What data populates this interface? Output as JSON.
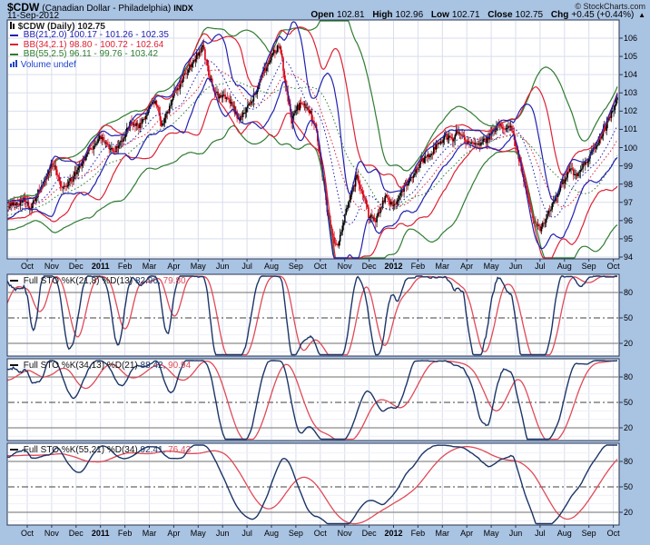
{
  "header": {
    "symbol": "$CDW",
    "name": "(Canadian Dollar - Philadelphia)",
    "exchange": "INDX",
    "date": "11-Sep-2012",
    "copyright": "© StockCharts.com",
    "quote": {
      "open_label": "Open",
      "open_value": "102.81",
      "high_label": "High",
      "high_value": "102.96",
      "low_label": "Low",
      "low_value": "102.71",
      "close_label": "Close",
      "close_value": "102.75",
      "chg_label": "Chg",
      "chg_value": "+0.45 (+0.44%)",
      "chg_arrow": "▲"
    }
  },
  "legend": {
    "title": "$CDW (Daily) 102.75",
    "bb21_label": "BB(21,2.0) 100.17 - 101.26 - 102.35",
    "bb34_label": "BB(34,2.1) 98.80 - 100.72 - 102.64",
    "bb55_label": "BB(55,2.5) 96.11 - 99.76 - 103.42",
    "volume_label": "Volume undef"
  },
  "stoch_panels": [
    {
      "label": "Full STO %K(21,8) %D(13)",
      "k_value": "82.96,",
      "d_value": "79.80"
    },
    {
      "label": "Full STO %K(34,13) %D(21)",
      "k_value": "88.42,",
      "d_value": "90.94"
    },
    {
      "label": "Full STO %K(55,21) %D(34)",
      "k_value": "92.41,",
      "d_value": "76.43"
    }
  ],
  "colors": {
    "background": "#a9c3e3",
    "plot_bg": "#ffffff",
    "grid": "#d9deec",
    "grid_light": "#eef0f8",
    "border": "#2a3550",
    "bb21": "#2121b0",
    "bb34": "#dd2233",
    "bb55": "#2f7c2f",
    "candle_up": "#000000",
    "candle_down": "#d40013",
    "stoch_k": "#1c3567",
    "stoch_d": "#e04a57",
    "ob_os_line": "#8a8a8a",
    "mid_line": "#404040",
    "volume_icon": "#2244cc",
    "legend_dash": "#111111",
    "title_color": "#222222"
  },
  "chart_data": {
    "type": "candlestick",
    "title": "$CDW Canadian Dollar - Philadelphia (Daily)",
    "x_months": [
      "Oct",
      "Nov",
      "Dec",
      "2011",
      "Feb",
      "Mar",
      "Apr",
      "May",
      "Jun",
      "Jul",
      "Aug",
      "Sep",
      "Oct",
      "Nov",
      "Dec",
      "2012",
      "Feb",
      "Mar",
      "Apr",
      "May",
      "Jun",
      "Jul",
      "Aug",
      "Sep",
      "Oct"
    ],
    "y_ticks_price": [
      94,
      95,
      96,
      97,
      98,
      99,
      100,
      101,
      102,
      103,
      104,
      105,
      106
    ],
    "price_ylim": [
      93.9,
      107.0
    ],
    "grid": true,
    "weekly_close": [
      96.8,
      97.0,
      96.9,
      97.2,
      96.6,
      97.4,
      98.1,
      98.8,
      99.2,
      97.7,
      97.9,
      98.3,
      98.9,
      99.4,
      99.9,
      100.3,
      100.6,
      100.1,
      99.7,
      100.2,
      100.9,
      101.4,
      101.1,
      101.6,
      102.2,
      102.7,
      101.3,
      101.8,
      102.9,
      103.4,
      104.0,
      104.6,
      105.0,
      105.5,
      104.1,
      103.0,
      102.7,
      102.9,
      102.3,
      101.6,
      101.9,
      102.4,
      103.1,
      103.9,
      104.7,
      105.3,
      105.6,
      103.5,
      101.4,
      102.2,
      102.4,
      102.0,
      101.2,
      99.0,
      96.6,
      95.0,
      94.7,
      96.4,
      97.4,
      98.4,
      97.5,
      96.3,
      95.9,
      96.7,
      97.3,
      96.8,
      97.2,
      97.9,
      98.3,
      98.8,
      99.3,
      99.6,
      99.9,
      100.3,
      100.6,
      100.4,
      100.9,
      100.6,
      100.1,
      100.4,
      100.2,
      100.5,
      100.8,
      101.4,
      101.1,
      101.2,
      100.0,
      98.5,
      97.1,
      95.9,
      95.4,
      96.2,
      96.9,
      97.6,
      98.2,
      98.8,
      98.4,
      99.0,
      99.4,
      99.9,
      100.5,
      101.1,
      101.9,
      102.75
    ],
    "last_close": 102.75,
    "overlays": [
      {
        "name": "BB(21,2.0)",
        "window": 21,
        "mult": 2.0,
        "values": [
          100.17,
          101.26,
          102.35
        ]
      },
      {
        "name": "BB(34,2.1)",
        "window": 34,
        "mult": 2.1,
        "values": [
          98.8,
          100.72,
          102.64
        ]
      },
      {
        "name": "BB(55,2.5)",
        "window": 55,
        "mult": 2.5,
        "values": [
          96.11,
          99.76,
          103.42
        ]
      }
    ],
    "indicators": [
      {
        "name": "Full STO %K(21,8) %D(13)",
        "n": 21,
        "k_smooth": 8,
        "d_smooth": 13,
        "last_k": 82.96,
        "last_d": 79.8,
        "y_ticks": [
          20,
          50,
          80
        ],
        "ylim": [
          0,
          100
        ]
      },
      {
        "name": "Full STO %K(34,13) %D(21)",
        "n": 34,
        "k_smooth": 13,
        "d_smooth": 21,
        "last_k": 88.42,
        "last_d": 90.94,
        "y_ticks": [
          20,
          50,
          80
        ],
        "ylim": [
          0,
          100
        ]
      },
      {
        "name": "Full STO %K(55,21) %D(34)",
        "n": 55,
        "k_smooth": 21,
        "d_smooth": 34,
        "last_k": 92.41,
        "last_d": 76.43,
        "y_ticks": [
          20,
          50,
          80
        ],
        "ylim": [
          0,
          100
        ]
      }
    ]
  }
}
